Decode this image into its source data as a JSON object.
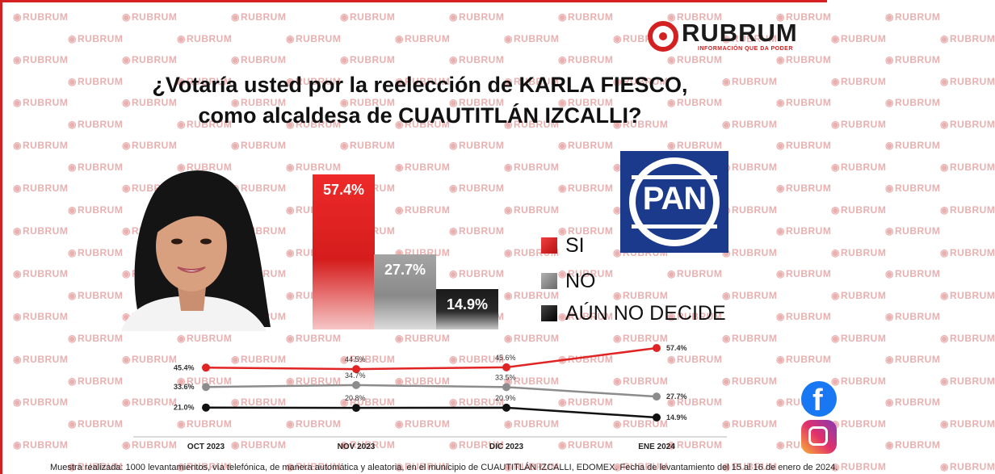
{
  "brand": {
    "name": "RUBRUM",
    "tagline": "INFORMACIÓN QUE DA PODER",
    "watermark": "RUBRUM"
  },
  "title": {
    "line1": "¿Votaría usted por la reelección de KARLA FIESCO,",
    "line2": "como alcaldesa de CUAUTITLÁN IZCALLI?"
  },
  "party_logo": {
    "text": "PAN",
    "color": "#1b3a8c"
  },
  "chart_data": [
    {
      "type": "bar",
      "categories": [
        "SI",
        "NO",
        "AÚN NO DECIDE"
      ],
      "values": [
        57.4,
        27.7,
        14.9
      ],
      "labels": [
        "57.4%",
        "27.7%",
        "14.9%"
      ],
      "colors": [
        "#e02424",
        "#9a9a9a",
        "#222222"
      ],
      "legend": [
        "SI",
        "NO",
        "AÚN NO DECIDE"
      ],
      "legend_placement": "right",
      "ylim": [
        0,
        60
      ]
    },
    {
      "type": "line",
      "x": [
        "OCT 2023",
        "NOV 2023",
        "DIC 2023",
        "ENE 2024"
      ],
      "series": [
        {
          "name": "SI",
          "color": "#e02424",
          "values": [
            45.4,
            44.5,
            45.6,
            57.4
          ],
          "labels": [
            "45.4%",
            "44.5%",
            "45.6%",
            "57.4%"
          ]
        },
        {
          "name": "NO",
          "color": "#8c8c8c",
          "values": [
            33.6,
            34.7,
            33.5,
            27.7
          ],
          "labels": [
            "33.6%",
            "34.7%",
            "33.5%",
            "27.7%"
          ]
        },
        {
          "name": "AÚN NO DECIDE",
          "color": "#111111",
          "values": [
            21.0,
            20.8,
            20.9,
            14.9
          ],
          "labels": [
            "21.0%",
            "20.8%",
            "20.9%",
            "14.9%"
          ]
        }
      ]
    }
  ],
  "footnote": "Muestra realizada: 1000 levantamientos, vía telefónica, de manera automática y aleatoria, en el municipio de CUAUTITLÁN IZCALLI, EDOMEX. Fecha de levantamiento del 15 al 16 de enero de 2024."
}
